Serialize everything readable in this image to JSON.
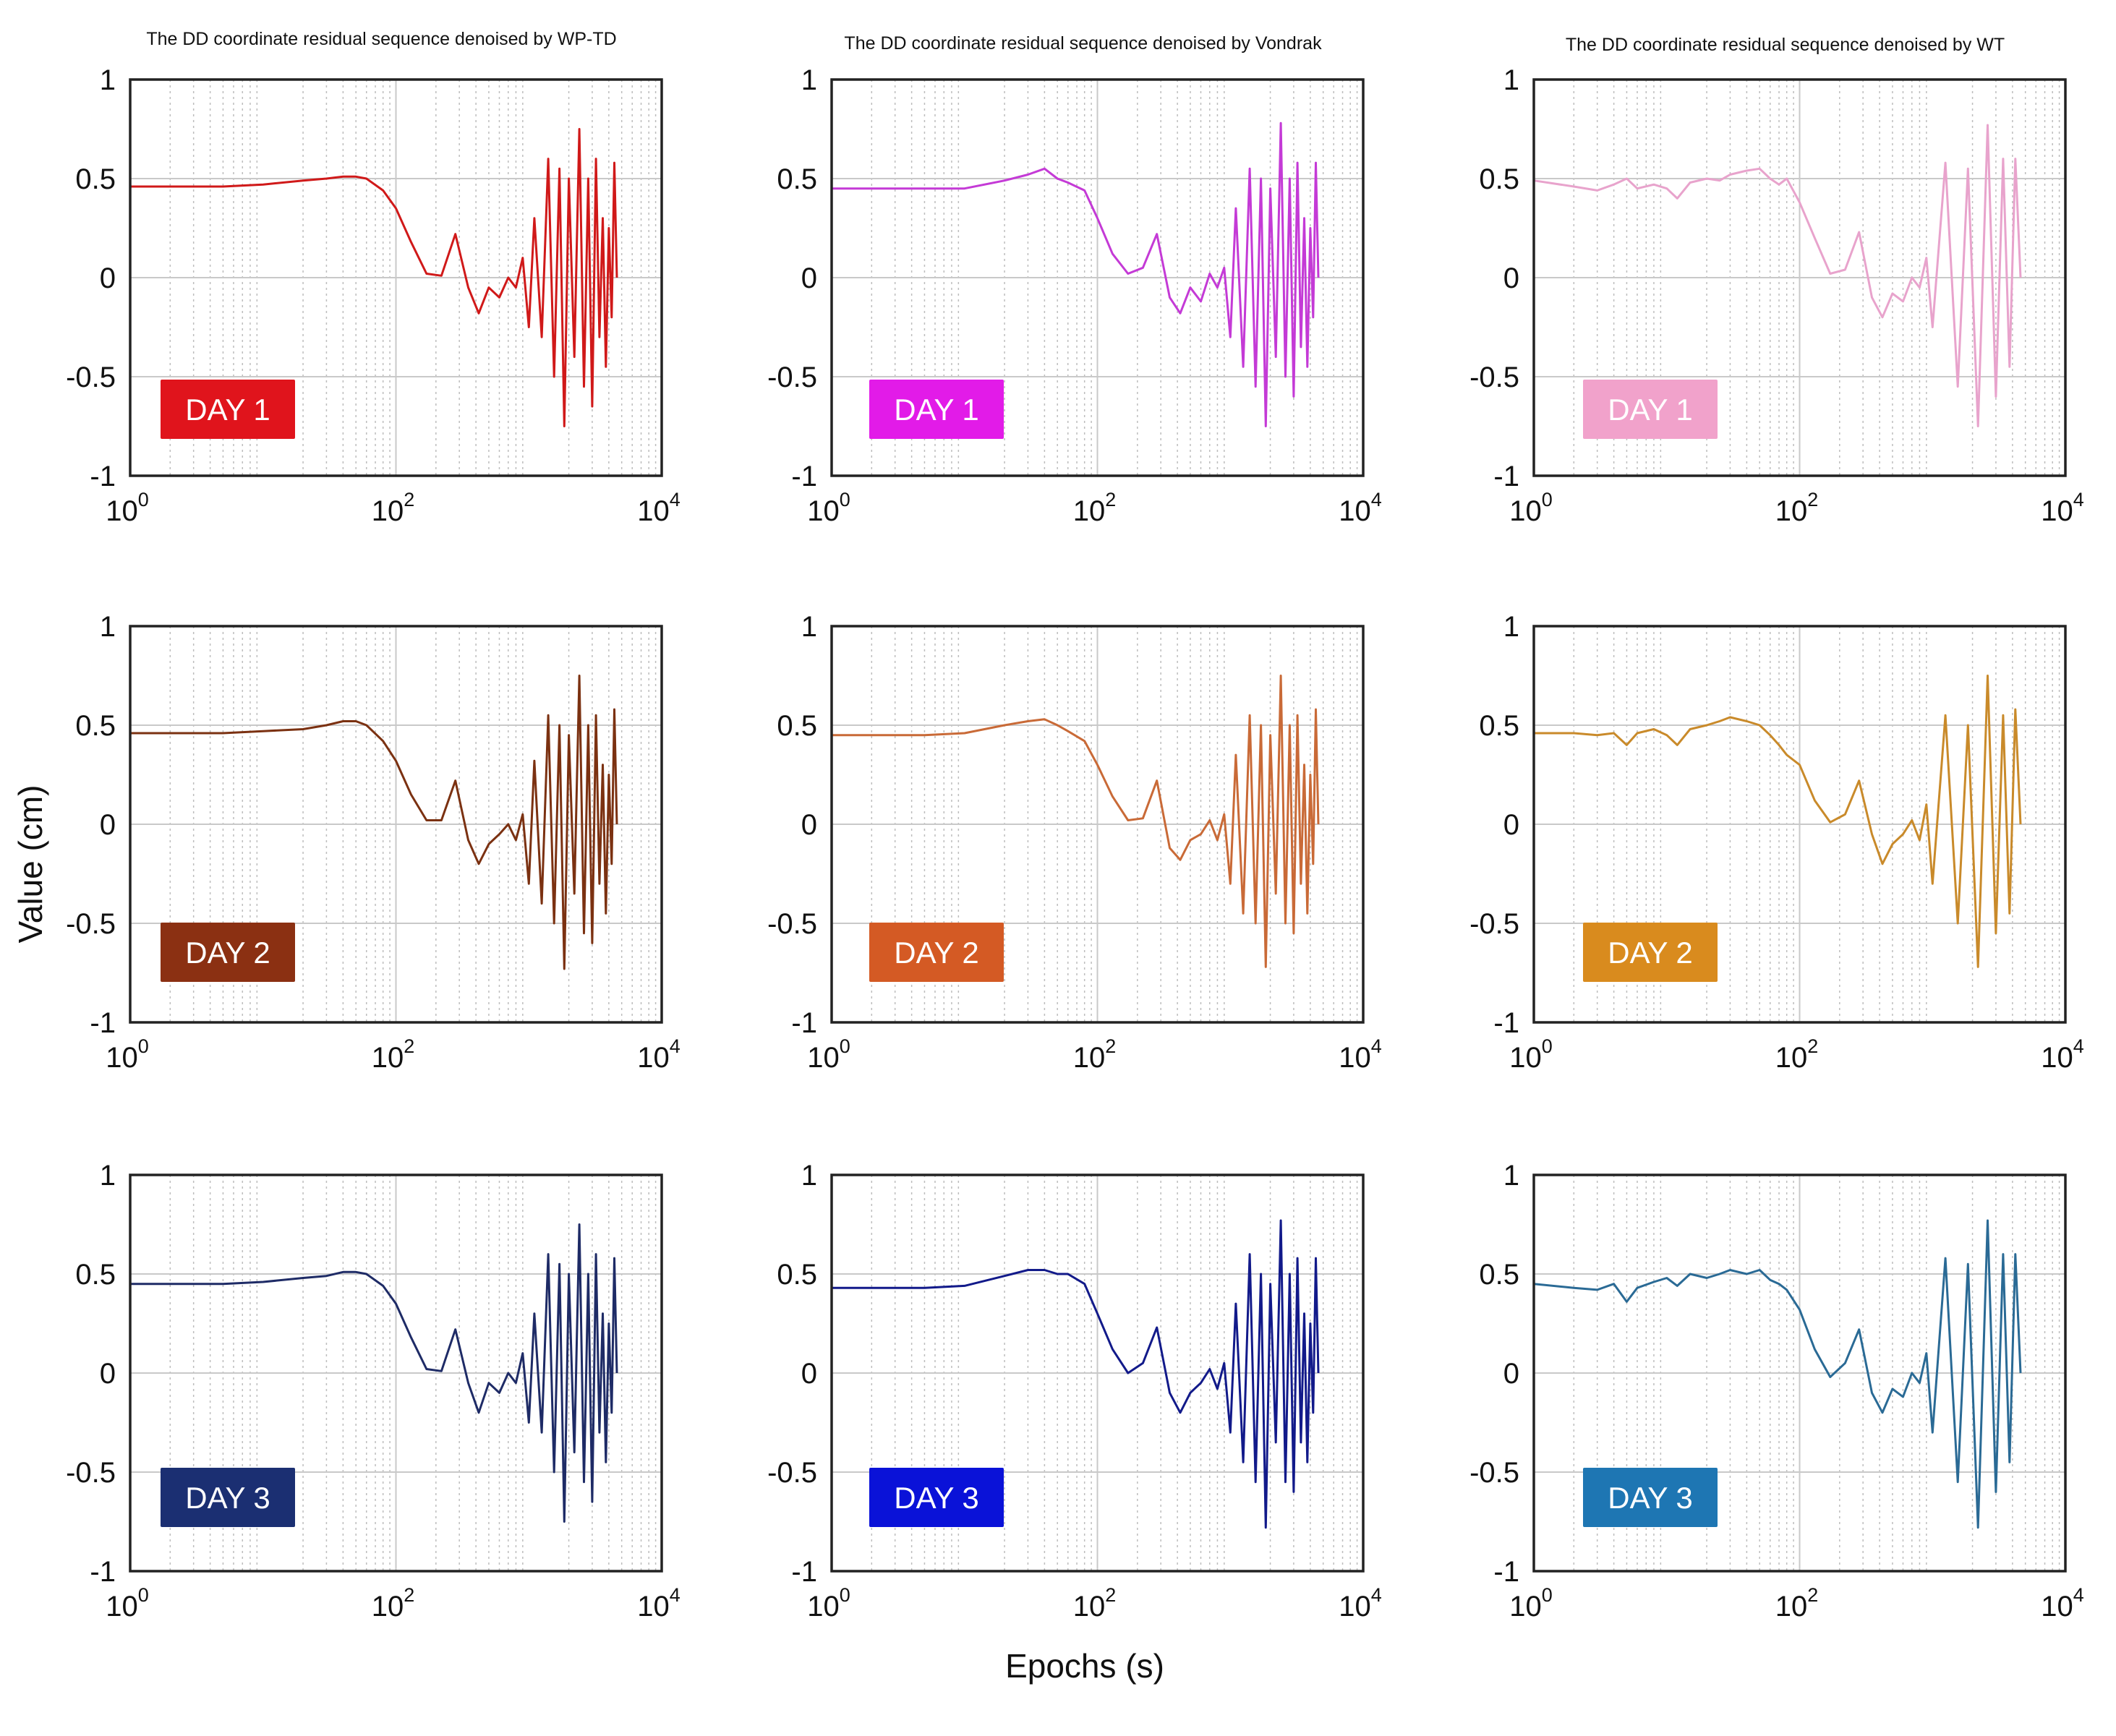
{
  "figure": {
    "xlabel": "Epochs (s)",
    "ylabel": "Value (cm)"
  },
  "chart_data": [
    {
      "type": "line",
      "column_title": "The DD coordinate residual sequence denoised by WP-TD",
      "label": "DAY 1",
      "method": "WP-TD",
      "color": "#d01919",
      "badge_color": "#e0141c",
      "xscale": "log",
      "xlim": [
        1,
        10000
      ],
      "ylim": [
        -1,
        1
      ],
      "xticks": [
        {
          "base": "10",
          "exp": "0"
        },
        {
          "base": "10",
          "exp": "2"
        },
        {
          "base": "10",
          "exp": "4"
        }
      ],
      "yticks": [
        "1",
        "0.5",
        "0",
        "-0.5",
        "-1"
      ],
      "x": [
        1,
        5,
        10,
        20,
        30,
        40,
        50,
        60,
        80,
        100,
        130,
        170,
        220,
        280,
        350,
        420,
        500,
        600,
        700,
        800,
        900,
        1000,
        1100,
        1250,
        1400,
        1550,
        1700,
        1850,
        2000,
        2200,
        2400,
        2600,
        2800,
        3000,
        3200,
        3400,
        3600,
        3800,
        4000,
        4200,
        4400,
        4600
      ],
      "y": [
        0.46,
        0.46,
        0.47,
        0.49,
        0.5,
        0.51,
        0.51,
        0.5,
        0.44,
        0.35,
        0.18,
        0.02,
        0.01,
        0.22,
        -0.05,
        -0.18,
        -0.05,
        -0.1,
        0.0,
        -0.05,
        0.1,
        -0.25,
        0.3,
        -0.3,
        0.6,
        -0.5,
        0.55,
        -0.75,
        0.5,
        -0.4,
        0.75,
        -0.55,
        0.5,
        -0.65,
        0.6,
        -0.3,
        0.3,
        -0.45,
        0.25,
        -0.2,
        0.58,
        0.0
      ]
    },
    {
      "type": "line",
      "column_title": "The DD coordinate residual sequence denoised by Vondrak",
      "label": "DAY 1",
      "method": "Vondrak",
      "color": "#c43ad6",
      "badge_color": "#e21be8",
      "xscale": "log",
      "xlim": [
        1,
        10000
      ],
      "ylim": [
        -1,
        1
      ],
      "xticks": [
        {
          "base": "10",
          "exp": "0"
        },
        {
          "base": "10",
          "exp": "2"
        },
        {
          "base": "10",
          "exp": "4"
        }
      ],
      "yticks": [
        "1",
        "0.5",
        "0",
        "-0.5",
        "-1"
      ],
      "x": [
        1,
        5,
        10,
        20,
        30,
        40,
        50,
        60,
        80,
        100,
        130,
        170,
        220,
        280,
        350,
        420,
        500,
        600,
        700,
        800,
        900,
        1000,
        1100,
        1250,
        1400,
        1550,
        1700,
        1850,
        2000,
        2200,
        2400,
        2600,
        2800,
        3000,
        3200,
        3400,
        3600,
        3800,
        4000,
        4200,
        4400,
        4600
      ],
      "y": [
        0.45,
        0.45,
        0.45,
        0.49,
        0.52,
        0.55,
        0.5,
        0.48,
        0.44,
        0.3,
        0.12,
        0.02,
        0.05,
        0.22,
        -0.1,
        -0.18,
        -0.05,
        -0.12,
        0.02,
        -0.05,
        0.05,
        -0.3,
        0.35,
        -0.45,
        0.55,
        -0.55,
        0.5,
        -0.75,
        0.45,
        -0.4,
        0.78,
        -0.5,
        0.5,
        -0.6,
        0.58,
        -0.35,
        0.3,
        -0.45,
        0.25,
        -0.2,
        0.58,
        0.0
      ]
    },
    {
      "type": "line",
      "column_title": "The DD coordinate residual sequence denoised by WT",
      "label": "DAY 1",
      "method": "WT",
      "color": "#e8a3cc",
      "badge_color": "#f1a2cb",
      "xscale": "log",
      "xlim": [
        1,
        10000
      ],
      "ylim": [
        -1,
        1
      ],
      "xticks": [
        {
          "base": "10",
          "exp": "0"
        },
        {
          "base": "10",
          "exp": "2"
        },
        {
          "base": "10",
          "exp": "4"
        }
      ],
      "yticks": [
        "1",
        "0.5",
        "0",
        "-0.5",
        "-1"
      ],
      "x": [
        1,
        2,
        3,
        4,
        5,
        6,
        8,
        10,
        12,
        15,
        20,
        25,
        30,
        40,
        50,
        60,
        70,
        80,
        100,
        130,
        170,
        220,
        280,
        350,
        420,
        500,
        600,
        700,
        800,
        900,
        1000,
        1250,
        1550,
        1850,
        2200,
        2600,
        3000,
        3400,
        3800,
        4200,
        4600
      ],
      "y": [
        0.49,
        0.46,
        0.44,
        0.47,
        0.5,
        0.45,
        0.47,
        0.45,
        0.4,
        0.48,
        0.5,
        0.49,
        0.52,
        0.54,
        0.55,
        0.5,
        0.47,
        0.5,
        0.38,
        0.2,
        0.02,
        0.04,
        0.23,
        -0.1,
        -0.2,
        -0.08,
        -0.12,
        0.0,
        -0.05,
        0.1,
        -0.25,
        0.58,
        -0.55,
        0.55,
        -0.75,
        0.77,
        -0.6,
        0.6,
        -0.45,
        0.6,
        0.0
      ]
    },
    {
      "type": "line",
      "column_title": "",
      "label": "DAY 2",
      "method": "WP-TD",
      "color": "#7b3111",
      "badge_color": "#8b3012",
      "xscale": "log",
      "xlim": [
        1,
        10000
      ],
      "ylim": [
        -1,
        1
      ],
      "xticks": [
        {
          "base": "10",
          "exp": "0"
        },
        {
          "base": "10",
          "exp": "2"
        },
        {
          "base": "10",
          "exp": "4"
        }
      ],
      "yticks": [
        "1",
        "0.5",
        "0",
        "-0.5",
        "-1"
      ],
      "x": [
        1,
        5,
        10,
        20,
        30,
        40,
        50,
        60,
        80,
        100,
        130,
        170,
        220,
        280,
        350,
        420,
        500,
        600,
        700,
        800,
        900,
        1000,
        1100,
        1250,
        1400,
        1550,
        1700,
        1850,
        2000,
        2200,
        2400,
        2600,
        2800,
        3000,
        3200,
        3400,
        3600,
        3800,
        4000,
        4200,
        4400,
        4600
      ],
      "y": [
        0.46,
        0.46,
        0.47,
        0.48,
        0.5,
        0.52,
        0.52,
        0.5,
        0.42,
        0.32,
        0.15,
        0.02,
        0.02,
        0.22,
        -0.08,
        -0.2,
        -0.1,
        -0.05,
        0.0,
        -0.08,
        0.05,
        -0.3,
        0.32,
        -0.4,
        0.55,
        -0.5,
        0.5,
        -0.73,
        0.45,
        -0.35,
        0.75,
        -0.55,
        0.5,
        -0.6,
        0.55,
        -0.3,
        0.3,
        -0.45,
        0.25,
        -0.2,
        0.58,
        0.0
      ]
    },
    {
      "type": "line",
      "column_title": "",
      "label": "DAY 2",
      "method": "Vondrak",
      "color": "#c96a37",
      "badge_color": "#d45a24",
      "xscale": "log",
      "xlim": [
        1,
        10000
      ],
      "ylim": [
        -1,
        1
      ],
      "xticks": [
        {
          "base": "10",
          "exp": "0"
        },
        {
          "base": "10",
          "exp": "2"
        },
        {
          "base": "10",
          "exp": "4"
        }
      ],
      "yticks": [
        "1",
        "0.5",
        "0",
        "-0.5",
        "-1"
      ],
      "x": [
        1,
        5,
        10,
        20,
        30,
        40,
        50,
        60,
        80,
        100,
        130,
        170,
        220,
        280,
        350,
        420,
        500,
        600,
        700,
        800,
        900,
        1000,
        1100,
        1250,
        1400,
        1550,
        1700,
        1850,
        2000,
        2200,
        2400,
        2600,
        2800,
        3000,
        3200,
        3400,
        3600,
        3800,
        4000,
        4200,
        4400,
        4600
      ],
      "y": [
        0.45,
        0.45,
        0.46,
        0.5,
        0.52,
        0.53,
        0.5,
        0.47,
        0.42,
        0.3,
        0.14,
        0.02,
        0.03,
        0.22,
        -0.12,
        -0.18,
        -0.08,
        -0.05,
        0.02,
        -0.08,
        0.05,
        -0.3,
        0.35,
        -0.45,
        0.55,
        -0.5,
        0.5,
        -0.72,
        0.45,
        -0.35,
        0.75,
        -0.5,
        0.5,
        -0.55,
        0.55,
        -0.3,
        0.3,
        -0.45,
        0.25,
        -0.2,
        0.58,
        0.0
      ]
    },
    {
      "type": "line",
      "column_title": "",
      "label": "DAY 2",
      "method": "WT",
      "color": "#c98a2a",
      "badge_color": "#d98b1e",
      "xscale": "log",
      "xlim": [
        1,
        10000
      ],
      "ylim": [
        -1,
        1
      ],
      "xticks": [
        {
          "base": "10",
          "exp": "0"
        },
        {
          "base": "10",
          "exp": "2"
        },
        {
          "base": "10",
          "exp": "4"
        }
      ],
      "yticks": [
        "1",
        "0.5",
        "0",
        "-0.5",
        "-1"
      ],
      "x": [
        1,
        2,
        3,
        4,
        5,
        6,
        8,
        10,
        12,
        15,
        20,
        25,
        30,
        40,
        50,
        60,
        70,
        80,
        100,
        130,
        170,
        220,
        280,
        350,
        420,
        500,
        600,
        700,
        800,
        900,
        1000,
        1250,
        1550,
        1850,
        2200,
        2600,
        3000,
        3400,
        3800,
        4200,
        4600
      ],
      "y": [
        0.46,
        0.46,
        0.45,
        0.46,
        0.4,
        0.46,
        0.48,
        0.45,
        0.4,
        0.48,
        0.5,
        0.52,
        0.54,
        0.52,
        0.5,
        0.45,
        0.4,
        0.35,
        0.3,
        0.12,
        0.01,
        0.05,
        0.22,
        -0.05,
        -0.2,
        -0.1,
        -0.05,
        0.02,
        -0.08,
        0.1,
        -0.3,
        0.55,
        -0.5,
        0.5,
        -0.72,
        0.75,
        -0.55,
        0.55,
        -0.45,
        0.58,
        0.0
      ]
    },
    {
      "type": "line",
      "column_title": "",
      "label": "DAY 3",
      "method": "WP-TD",
      "color": "#1e2b66",
      "badge_color": "#1b2f72",
      "xscale": "log",
      "xlim": [
        1,
        10000
      ],
      "ylim": [
        -1,
        1
      ],
      "xticks": [
        {
          "base": "10",
          "exp": "0"
        },
        {
          "base": "10",
          "exp": "2"
        },
        {
          "base": "10",
          "exp": "4"
        }
      ],
      "yticks": [
        "1",
        "0.5",
        "0",
        "-0.5",
        "-1"
      ],
      "x": [
        1,
        5,
        10,
        20,
        30,
        40,
        50,
        60,
        80,
        100,
        130,
        170,
        220,
        280,
        350,
        420,
        500,
        600,
        700,
        800,
        900,
        1000,
        1100,
        1250,
        1400,
        1550,
        1700,
        1850,
        2000,
        2200,
        2400,
        2600,
        2800,
        3000,
        3200,
        3400,
        3600,
        3800,
        4000,
        4200,
        4400,
        4600
      ],
      "y": [
        0.45,
        0.45,
        0.46,
        0.48,
        0.49,
        0.51,
        0.51,
        0.5,
        0.44,
        0.35,
        0.18,
        0.02,
        0.01,
        0.22,
        -0.05,
        -0.2,
        -0.05,
        -0.1,
        0.0,
        -0.05,
        0.1,
        -0.25,
        0.3,
        -0.3,
        0.6,
        -0.5,
        0.55,
        -0.75,
        0.5,
        -0.4,
        0.75,
        -0.55,
        0.5,
        -0.65,
        0.6,
        -0.3,
        0.3,
        -0.45,
        0.25,
        -0.2,
        0.58,
        0.0
      ]
    },
    {
      "type": "line",
      "column_title": "",
      "label": "DAY 3",
      "method": "Vondrak",
      "color": "#121a8a",
      "badge_color": "#0a12d8",
      "xscale": "log",
      "xlim": [
        1,
        10000
      ],
      "ylim": [
        -1,
        1
      ],
      "xticks": [
        {
          "base": "10",
          "exp": "0"
        },
        {
          "base": "10",
          "exp": "2"
        },
        {
          "base": "10",
          "exp": "4"
        }
      ],
      "yticks": [
        "1",
        "0.5",
        "0",
        "-0.5",
        "-1"
      ],
      "x": [
        1,
        5,
        10,
        20,
        30,
        40,
        50,
        60,
        80,
        100,
        130,
        170,
        220,
        280,
        350,
        420,
        500,
        600,
        700,
        800,
        900,
        1000,
        1100,
        1250,
        1400,
        1550,
        1700,
        1850,
        2000,
        2200,
        2400,
        2600,
        2800,
        3000,
        3200,
        3400,
        3600,
        3800,
        4000,
        4200,
        4400,
        4600
      ],
      "y": [
        0.43,
        0.43,
        0.44,
        0.49,
        0.52,
        0.52,
        0.5,
        0.5,
        0.45,
        0.3,
        0.12,
        0.0,
        0.05,
        0.23,
        -0.1,
        -0.2,
        -0.1,
        -0.05,
        0.02,
        -0.08,
        0.05,
        -0.3,
        0.35,
        -0.45,
        0.6,
        -0.55,
        0.5,
        -0.78,
        0.45,
        -0.35,
        0.77,
        -0.55,
        0.5,
        -0.6,
        0.58,
        -0.35,
        0.3,
        -0.45,
        0.25,
        -0.2,
        0.58,
        0.0
      ]
    },
    {
      "type": "line",
      "column_title": "",
      "label": "DAY 3",
      "method": "WT",
      "color": "#2a6a95",
      "badge_color": "#1e76b3",
      "xscale": "log",
      "xlim": [
        1,
        10000
      ],
      "ylim": [
        -1,
        1
      ],
      "xticks": [
        {
          "base": "10",
          "exp": "0"
        },
        {
          "base": "10",
          "exp": "2"
        },
        {
          "base": "10",
          "exp": "4"
        }
      ],
      "yticks": [
        "1",
        "0.5",
        "0",
        "-0.5",
        "-1"
      ],
      "x": [
        1,
        2,
        3,
        4,
        5,
        6,
        8,
        10,
        12,
        15,
        20,
        25,
        30,
        40,
        50,
        60,
        70,
        80,
        100,
        130,
        170,
        220,
        280,
        350,
        420,
        500,
        600,
        700,
        800,
        900,
        1000,
        1250,
        1550,
        1850,
        2200,
        2600,
        3000,
        3400,
        3800,
        4200,
        4600
      ],
      "y": [
        0.45,
        0.43,
        0.42,
        0.45,
        0.36,
        0.43,
        0.46,
        0.48,
        0.44,
        0.5,
        0.48,
        0.5,
        0.52,
        0.5,
        0.52,
        0.47,
        0.45,
        0.42,
        0.32,
        0.12,
        -0.02,
        0.05,
        0.22,
        -0.1,
        -0.2,
        -0.08,
        -0.12,
        0.0,
        -0.05,
        0.1,
        -0.3,
        0.58,
        -0.55,
        0.55,
        -0.78,
        0.77,
        -0.6,
        0.6,
        -0.45,
        0.6,
        0.0
      ]
    }
  ]
}
